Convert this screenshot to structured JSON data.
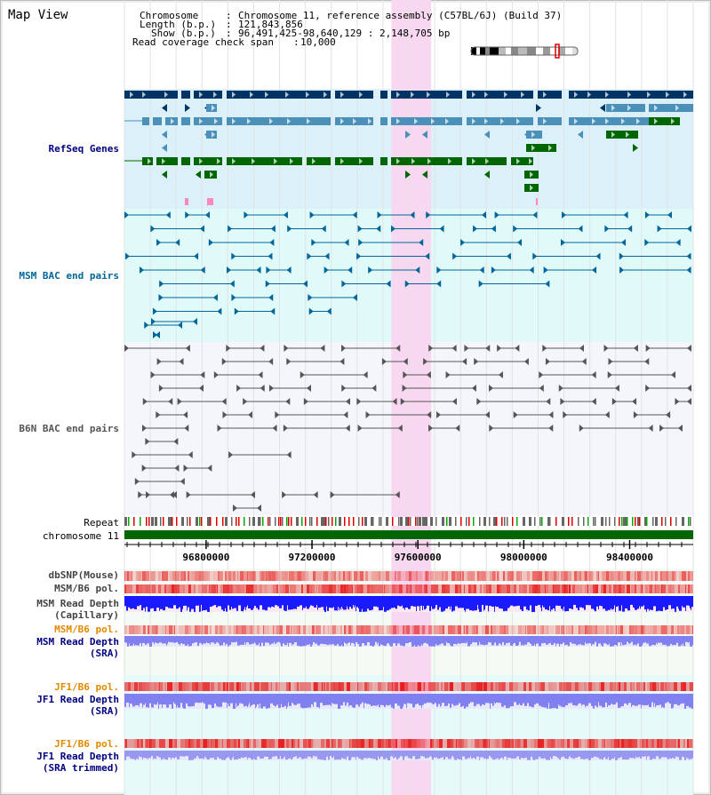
{
  "view_title": "Map View",
  "info": {
    "chromosome_label": "Chromosome",
    "chromosome_value": "Chromosome 11, reference assembly (C57BL/6J) (Build 37)",
    "length_label": "Length (b.p.)",
    "length_value": "121,843,856",
    "show_label": "Show (b.p.)",
    "show_value": "96,491,425-98,640,129 : 2,148,705 bp",
    "span_label": "Read coverage check span",
    "span_value": "10,000",
    "separator": ":"
  },
  "tracks": {
    "refseq": "RefSeq Genes",
    "msm_bac": "MSM BAC end pairs",
    "b6n_bac": "B6N BAC end pairs",
    "repeat": "Repeat",
    "chromosome": "chromosome 11",
    "dbsnp": "dbSNP(Mouse)",
    "msm_pol": "MSM/B6 pol.",
    "msm_depth_cap_1": "MSM Read Depth",
    "msm_depth_cap_2": "(Capillary)",
    "msm_pol_2": "MSM/B6 pol.",
    "msm_depth_sra_1": "MSM Read Depth",
    "msm_depth_sra_2": "(SRA)",
    "jf1_pol": "JF1/B6 pol.",
    "jf1_depth_sra_1": "JF1 Read Depth",
    "jf1_depth_sra_2": "(SRA)",
    "jf1_pol_2": "JF1/B6 pol.",
    "jf1_depth_trim_1": "JF1 Read Depth",
    "jf1_depth_trim_2": "(SRA trimmed)"
  },
  "axis": {
    "ticks": [
      "96800000",
      "97200000",
      "97600000",
      "98000000",
      "98400000"
    ],
    "range_start": 96491425,
    "range_end": 98640129
  },
  "highlight": {
    "start": 97500000,
    "end": 97650000
  },
  "colors": {
    "refseq_bg": "#dcf0fa",
    "msm_bg": "#e0fafa",
    "b6n_bg": "#f4f6fb",
    "highlight": "#f8d8f0",
    "gene_dark": "#003366",
    "gene_light": "#4a90b8",
    "gene_green": "#006600",
    "bac_msm": "#006699",
    "bac_b6n": "#555555",
    "chromosome": "#006600",
    "depth_blue": "#1a1aff",
    "depth_light": "#8080f0",
    "label_navy": "#000080",
    "label_orange": "#e08a00"
  }
}
